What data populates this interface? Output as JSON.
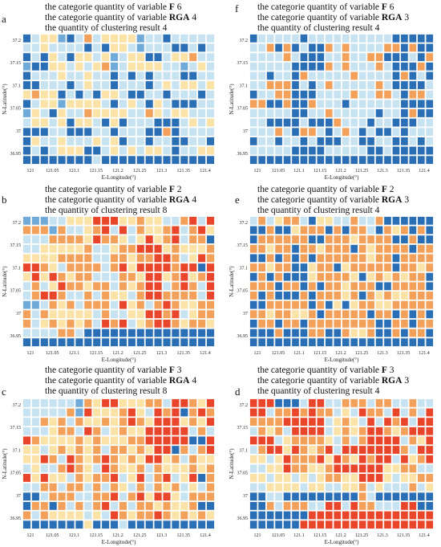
{
  "palette": {
    "dark_blue": "#2a6fb5",
    "mid_blue": "#6faad8",
    "light_blue": "#c7e2f0",
    "light_yellow": "#fbe3a8",
    "orange": "#f2a05a",
    "red": "#e8452a"
  },
  "chart_data": [
    {
      "id": "a",
      "type": "heatmap",
      "caption": [
        {
          "text": "the categorie quantity of  variable ",
          "var": "F",
          "value": "6"
        },
        {
          "text": "the categorie quantity of variable ",
          "var": "RGA",
          "value": "4"
        },
        {
          "text": "the quantity of clustering result  ",
          "var": "",
          "value": "4"
        }
      ],
      "xlabel": "E-Longitude(°)",
      "ylabel": "N-Latitude(°)",
      "xticks": [
        "121",
        "121.05",
        "121.1",
        "121.15",
        "121.2",
        "121.25",
        "121.3",
        "121.35",
        "121.4"
      ],
      "yticks": [
        "37.2",
        "37.15",
        "37.1",
        "37.05",
        "37",
        "36.95"
      ],
      "grid": [
        "1355213435555233133333",
        "3353333131553233311313",
        "1315315535235511355433",
        "2115535354235555332353",
        "1333533533131313331133",
        "1133313533133313535535",
        "5455131315531133133313",
        "1355255553135315311133",
        "2531533455553345355333",
        "3553515531513331113535",
        "1113311133133311413333",
        "1533533353513313311331",
        "1313555113535355313355",
        "1111111131111111111111"
      ]
    },
    {
      "id": "b",
      "type": "heatmap",
      "caption": [
        {
          "text": "the categorie quantity of  variable ",
          "var": "F",
          "value": "2"
        },
        {
          "text": "the categorie quantity of variable ",
          "var": "RGA",
          "value": "4"
        },
        {
          "text": "the quantity of clustering result  ",
          "var": "",
          "value": "8"
        }
      ],
      "xlabel": "E-Longitude(°)",
      "ylabel": "N-Latitude(°)",
      "xticks": [
        "121",
        "121.05",
        "121.1",
        "121.15",
        "121.2",
        "121.25",
        "121.3",
        "121.35",
        "121.4"
      ],
      "yticks": [
        "37.2",
        "37.15",
        "37.1",
        "37.05",
        "37",
        "36.95"
      ],
      "grid": [
        "2223355566655455334636",
        "4442433546363455463465",
        "3334444564453565463441",
        "3355555433544666545554",
        "5555444433445446643564",
        "6645344443465666646616",
        "5656454433344566546546",
        "3435644544345466346436",
        "3466433434553466444436",
        "2234543444365434645544",
        "4345555534335566463544",
        "4354545436463546645445",
        "3333443111111111111111",
        "1111111111111111111111"
      ]
    },
    {
      "id": "c",
      "type": "heatmap",
      "caption": [
        {
          "text": "the categorie quantity of  variable ",
          "var": "F",
          "value": "3"
        },
        {
          "text": "the categorie quantity of variable ",
          "var": "RGA",
          "value": "4"
        },
        {
          "text": "the quantity of clustering result  ",
          "var": "",
          "value": "8"
        }
      ],
      "xlabel": "E-Longitude(°)",
      "ylabel": "N-Latitude(°)",
      "xticks": [
        "121",
        "121.05",
        "121.1",
        "121.15",
        "121.2",
        "121.25",
        "121.3",
        "121.35",
        "121.4"
      ],
      "yticks": [
        "37.2",
        "37.15",
        "37.1",
        "37.05",
        "37",
        "36.95"
      ],
      "grid": [
        "3333332456655544366456",
        "3333342655546536461464",
        "3345434554546456665456",
        "3335443643545566666343",
        "6455554545554466666116",
        "5535454543445456614346",
        "5564364546454566543455",
        "3533464536455434555454",
        "6565534544635634635614",
        "3344344343453434543534",
        "1134443344634656653444",
        "1441434346343445455411",
        "4345555353645446454545",
        "1111111511131111111111"
      ]
    },
    {
      "id": "d",
      "type": "heatmap",
      "caption": [
        {
          "text": "the categorie quantity of  variable ",
          "var": "F",
          "value": "3"
        },
        {
          "text": "the categorie quantity of variable ",
          "var": "RGA",
          "value": "3"
        },
        {
          "text": "the quantity of clustering result  ",
          "var": "",
          "value": "4"
        }
      ],
      "xlabel": "E-Longitude(°)",
      "ylabel": "N-Latitude(°)",
      "xticks": [
        "121",
        "121.05",
        "121.1",
        "121.15",
        "121.2",
        "121.25",
        "121.3",
        "121.35",
        "121.4"
      ],
      "yticks": [
        "37.2",
        "37.15",
        "37.1",
        "37.05",
        "37",
        "36.95"
      ],
      "grid": [
        "6661113663344434433433",
        "6634464644353644363436",
        "4444666663545363646366",
        "3454366663545466454666",
        "6663544445343466663456",
        "3466564546366666664366",
        "5535644465645646636546",
        "3355644554666666554433",
        "5535535354455666535544",
        "3355553553355435333435",
        "1133111111111431111111",
        "1143444336636443336611",
        "1111111666666666666666",
        "1111116666666666666666"
      ]
    },
    {
      "id": "e",
      "type": "heatmap",
      "caption": [
        {
          "text": "the categorie quantity of  variable ",
          "var": "F",
          "value": "2"
        },
        {
          "text": "the categorie quantity of variable ",
          "var": "RGA",
          "value": "3"
        },
        {
          "text": "the quantity of clustering result  ",
          "var": "",
          "value": "4"
        }
      ],
      "xlabel": "E-Longitude(°)",
      "ylabel": "N-Latitude(°)",
      "xticks": [
        "121",
        "121.05",
        "121.1",
        "121.15",
        "121.2",
        "121.25",
        "121.3",
        "121.35",
        "121.4"
      ],
      "yticks": [
        "37.2",
        "37.15",
        "37.1",
        "37.05",
        "37",
        "36.95"
      ],
      "grid": [
        "3435443155334334111111",
        "1141154441414431454141",
        "1444444114445444411411",
        "4454414454441454444144",
        "1141414144444454414444",
        "4454411544154444414454",
        "1414111544445154545441",
        "4441441414454441144441",
        "4141114144454145455444",
        "1144444141515445544444",
        "4454455414444414414141",
        "1441441444444441144144",
        "1114111441145541141441",
        "1111111111111111111111"
      ]
    },
    {
      "id": "f",
      "type": "heatmap",
      "caption": [
        {
          "text": "the categorie quantity of  variable ",
          "var": "F",
          "value": "6"
        },
        {
          "text": "the categorie quantity of variable ",
          "var": "RGA",
          "value": "3"
        },
        {
          "text": "the quantity of clustering result  ",
          "var": "",
          "value": "4"
        }
      ],
      "xlabel": "E-Longitude(°)",
      "ylabel": "N-Latitude(°)",
      "xticks": [
        "121",
        "121.05",
        "121.1",
        "121.15",
        "121.2",
        "121.25",
        "121.3",
        "121.35",
        "121.4"
      ],
      "yticks": [
        "37.2",
        "37.15",
        "37.1",
        "37.05",
        "37",
        "36.95"
      ],
      "grid": [
        "1333331333333333311111",
        "3341413114343333441411",
        "3333431113343344111314",
        "3333311114343334311141",
        "3313314333334333314131",
        "3344413134333334311113",
        "1334411133334334431443",
        "4411411433313333331111",
        "3333311334333331331411",
        "3311113111433313311133",
        "3334314431343131131333",
        "1331331311133113311313",
        "3333311113333311311111",
        "1111111111111111111111"
      ]
    }
  ]
}
